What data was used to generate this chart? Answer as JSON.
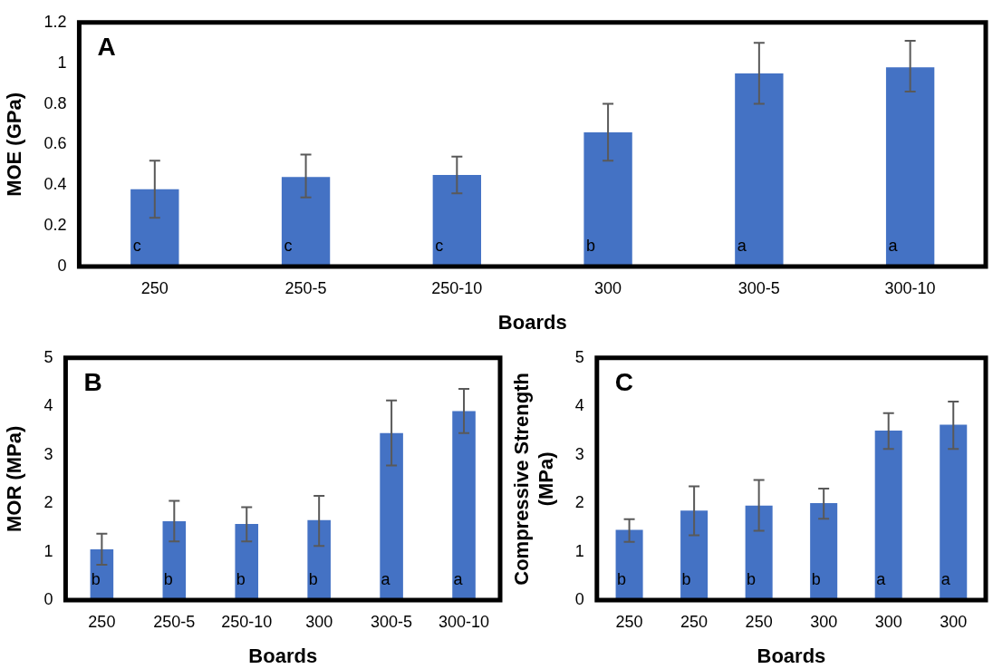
{
  "chart_data": [
    {
      "type": "bar",
      "title": "A",
      "xlabel": "Boards",
      "ylabel": "MOE (GPa)",
      "categories": [
        "250",
        "250-5",
        "250-10",
        "300",
        "300-5",
        "300-10"
      ],
      "values": [
        0.38,
        0.44,
        0.45,
        0.66,
        0.95,
        0.98
      ],
      "errors": [
        [
          0.24,
          0.52
        ],
        [
          0.34,
          0.55
        ],
        [
          0.36,
          0.54
        ],
        [
          0.52,
          0.8
        ],
        [
          0.8,
          1.1
        ],
        [
          0.86,
          1.11
        ]
      ],
      "color": "#4472c4",
      "ylim": [
        0,
        1.2
      ],
      "yticks": [
        0,
        {
          "value": 0.2,
          "label": "0.2"
        },
        {
          "value": 0.4,
          "label": "0.4"
        },
        {
          "value": 0.6,
          "label": "0.6"
        },
        {
          "value": 0.8,
          "label": "0.8"
        },
        1,
        {
          "value": 1.2,
          "label": "1.2"
        }
      ],
      "grid": false,
      "annotations": [
        "c",
        "c",
        "c",
        "b",
        "a",
        "a"
      ]
    },
    {
      "type": "bar",
      "title": "B",
      "xlabel": "Boards",
      "ylabel": "MOR (MPa)",
      "categories": [
        "250",
        "250-5",
        "250-10",
        "300",
        "300-5",
        "300-10"
      ],
      "values": [
        1.05,
        1.63,
        1.57,
        1.65,
        3.45,
        3.9
      ],
      "errors": [
        [
          0.73,
          1.37
        ],
        [
          1.21,
          2.05
        ],
        [
          1.21,
          1.92
        ],
        [
          1.12,
          2.15
        ],
        [
          2.78,
          4.12
        ],
        [
          3.45,
          4.36
        ]
      ],
      "color": "#4472c4",
      "ylim": [
        0,
        5
      ],
      "yticks": [
        0,
        1,
        2,
        3,
        4,
        5
      ],
      "grid": false,
      "annotations": [
        "b",
        "b",
        "b",
        "b",
        "a",
        "a"
      ]
    },
    {
      "type": "bar",
      "title": "C",
      "xlabel": "Boards",
      "ylabel": "Compressive Strength (MPa)",
      "categories": [
        "250",
        "250",
        "250",
        "300",
        "300",
        "300"
      ],
      "values": [
        1.45,
        1.85,
        1.95,
        2.0,
        3.5,
        3.62
      ],
      "errors": [
        [
          1.2,
          1.67
        ],
        [
          1.34,
          2.35
        ],
        [
          1.43,
          2.48
        ],
        [
          1.68,
          2.3
        ],
        [
          3.12,
          3.86
        ],
        [
          3.12,
          4.1
        ]
      ],
      "color": "#4472c4",
      "ylim": [
        0,
        5
      ],
      "yticks": [
        0,
        1,
        2,
        3,
        4,
        5
      ],
      "grid": false,
      "annotations": [
        "b",
        "b",
        "b",
        "b",
        "a",
        "a"
      ]
    }
  ]
}
